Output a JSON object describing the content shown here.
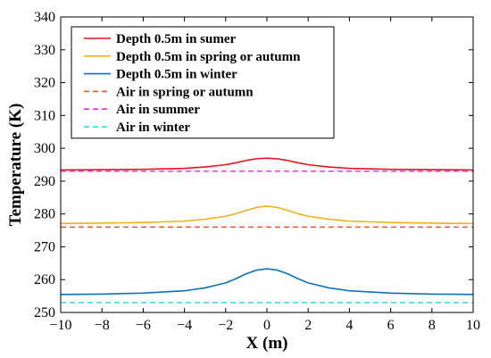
{
  "chart_data": {
    "type": "line",
    "xlabel": "X (m)",
    "ylabel": "Temperature (K)",
    "xlim": [
      -10,
      10
    ],
    "ylim": [
      250,
      340
    ],
    "xticks": [
      -10,
      -8,
      -6,
      -4,
      -2,
      0,
      2,
      4,
      6,
      8,
      10
    ],
    "yticks": [
      250,
      260,
      270,
      280,
      290,
      300,
      310,
      320,
      330,
      340
    ],
    "grid": false,
    "legend_position": "top-left",
    "x": [
      -10,
      -8,
      -6,
      -4,
      -3,
      -2,
      -1.5,
      -1,
      -0.5,
      0,
      0.5,
      1,
      1.5,
      2,
      3,
      4,
      6,
      8,
      10
    ],
    "series": [
      {
        "name": "Depth 0.5m in sumer",
        "color": "#e8141c",
        "style": "solid",
        "values": [
          293.4,
          293.5,
          293.6,
          293.9,
          294.3,
          295.0,
          295.6,
          296.3,
          296.8,
          297.0,
          296.8,
          296.3,
          295.6,
          295.0,
          294.3,
          293.9,
          293.6,
          293.5,
          293.4
        ]
      },
      {
        "name": "Depth 0.5m in spring or autumn",
        "color": "#f0b21a",
        "style": "solid",
        "values": [
          277.1,
          277.2,
          277.4,
          277.8,
          278.4,
          279.3,
          280.1,
          281.1,
          282.0,
          282.4,
          282.0,
          281.1,
          280.1,
          279.3,
          278.4,
          277.8,
          277.4,
          277.2,
          277.1
        ]
      },
      {
        "name": "Depth 0.5m in winter",
        "color": "#0b72bd",
        "style": "solid",
        "values": [
          255.5,
          255.6,
          255.9,
          256.6,
          257.5,
          259.0,
          260.3,
          261.8,
          262.9,
          263.3,
          262.9,
          261.8,
          260.3,
          259.0,
          257.5,
          256.6,
          255.9,
          255.6,
          255.5
        ]
      },
      {
        "name": "Air in spring or autumn",
        "color": "#e05a2b",
        "style": "dashed",
        "values": [
          276.0,
          276.0,
          276.0,
          276.0,
          276.0,
          276.0,
          276.0,
          276.0,
          276.0,
          276.0,
          276.0,
          276.0,
          276.0,
          276.0,
          276.0,
          276.0,
          276.0,
          276.0,
          276.0
        ]
      },
      {
        "name": "Air in summer",
        "color": "#e62ae6",
        "style": "dashed",
        "values": [
          293.0,
          293.0,
          293.0,
          293.0,
          293.0,
          293.0,
          293.0,
          293.0,
          293.0,
          293.0,
          293.0,
          293.0,
          293.0,
          293.0,
          293.0,
          293.0,
          293.0,
          293.0,
          293.0
        ]
      },
      {
        "name": "Air in winter",
        "color": "#22d6e0",
        "style": "dashed",
        "values": [
          253.0,
          253.0,
          253.0,
          253.0,
          253.0,
          253.0,
          253.0,
          253.0,
          253.0,
          253.0,
          253.0,
          253.0,
          253.0,
          253.0,
          253.0,
          253.0,
          253.0,
          253.0,
          253.0
        ]
      }
    ]
  }
}
